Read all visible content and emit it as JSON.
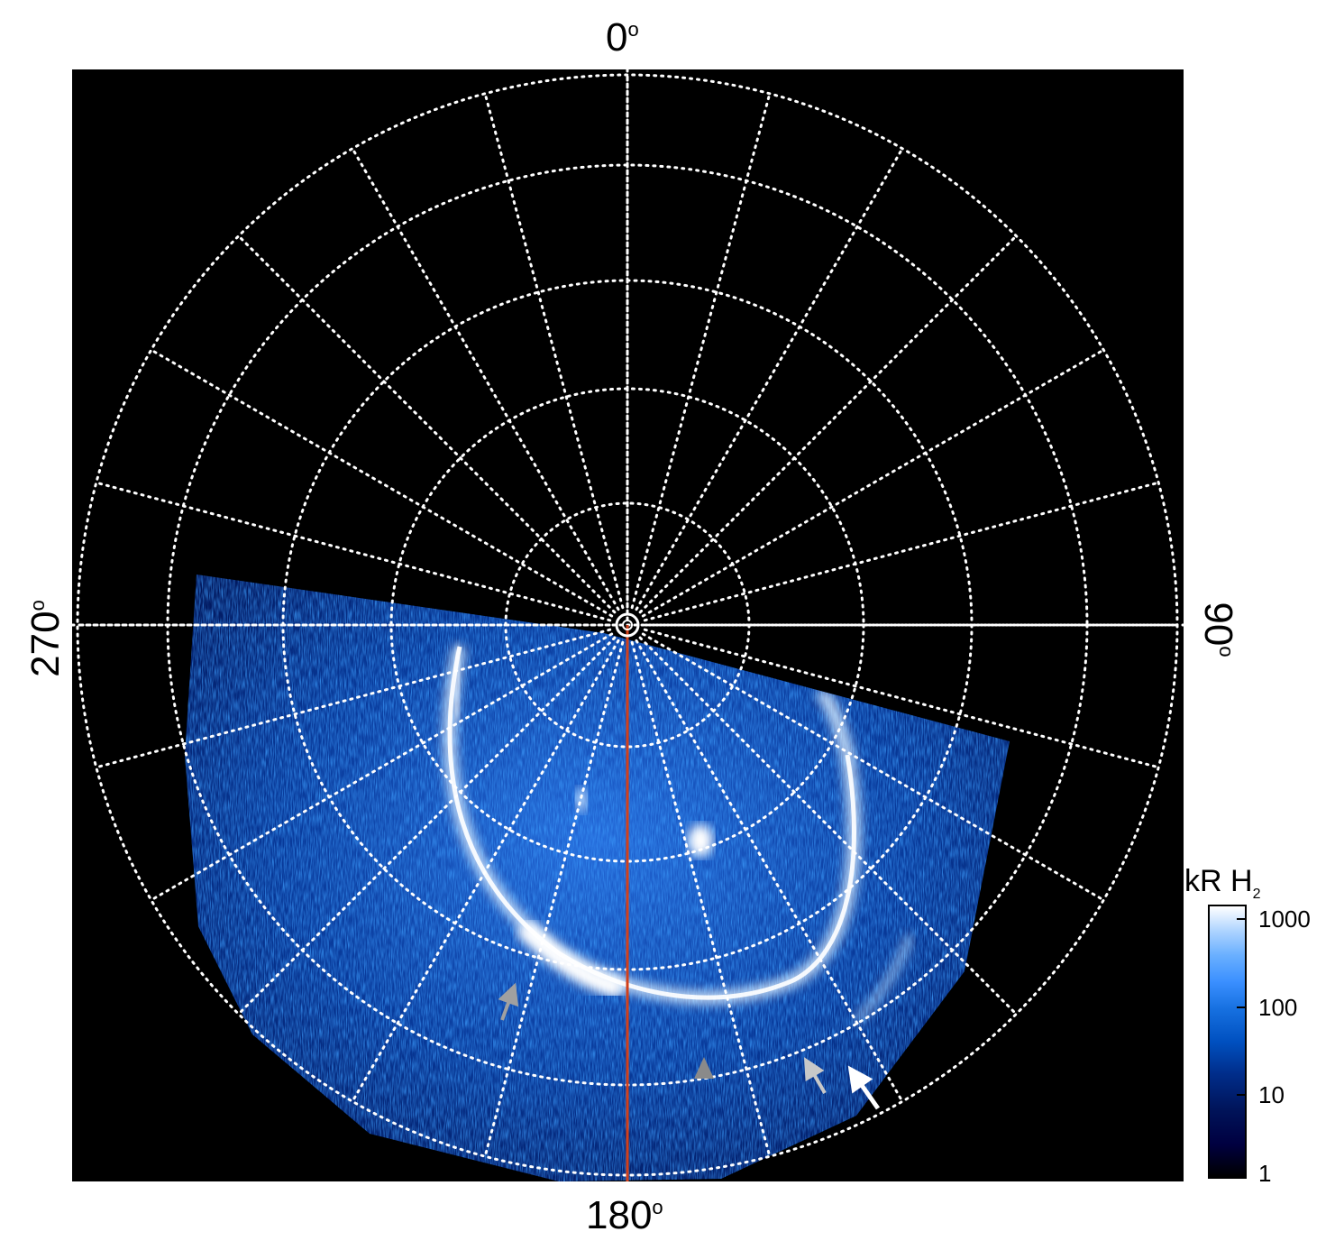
{
  "labels": {
    "top": "0",
    "bottom": "180",
    "left": "270",
    "right": "90",
    "degree_symbol": "o"
  },
  "colorbar": {
    "title": "kR H",
    "title_sub": "2",
    "ticks": [
      "1000",
      "100",
      "10",
      "1"
    ],
    "colors": [
      "#000000",
      "#002d8a",
      "#1670e0",
      "#6ab0ff",
      "#ffffff"
    ]
  },
  "colors": {
    "background": "#000000",
    "grid": "#ffffff",
    "meridian_line": "#d2401a",
    "arrow_white": "#ffffff",
    "arrow_gray": "#a0a0a0"
  }
}
